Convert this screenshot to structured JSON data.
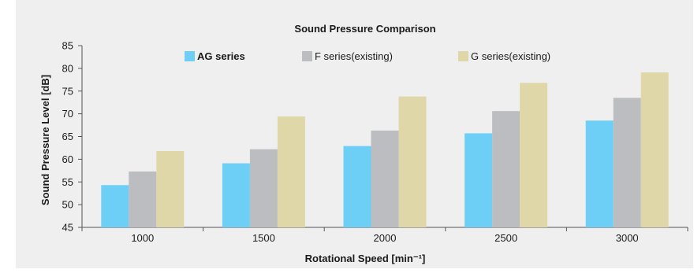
{
  "chart_data": {
    "type": "bar",
    "title": "Sound Pressure Comparison",
    "xlabel": "Rotational Speed [min⁻¹]",
    "ylabel": "Sound Pressure Level [dB]",
    "categories": [
      "1000",
      "1500",
      "2000",
      "2500",
      "3000"
    ],
    "ylim": [
      45,
      85
    ],
    "yticks": [
      "45",
      "50",
      "55",
      "60",
      "65",
      "70",
      "75",
      "80",
      "85"
    ],
    "grid": false,
    "legend_position": "top",
    "series": [
      {
        "name": "AG series",
        "color": "#6dcff6",
        "values": [
          54.3,
          59.1,
          62.9,
          65.7,
          68.5
        ]
      },
      {
        "name": "F series(existing)",
        "color": "#bcbdc0",
        "values": [
          57.3,
          62.2,
          66.3,
          70.6,
          73.5
        ]
      },
      {
        "name": "G series(existing)",
        "color": "#e0d7a8",
        "values": [
          61.8,
          69.4,
          73.8,
          76.8,
          79.1
        ]
      }
    ],
    "background_color": "#efefef"
  }
}
